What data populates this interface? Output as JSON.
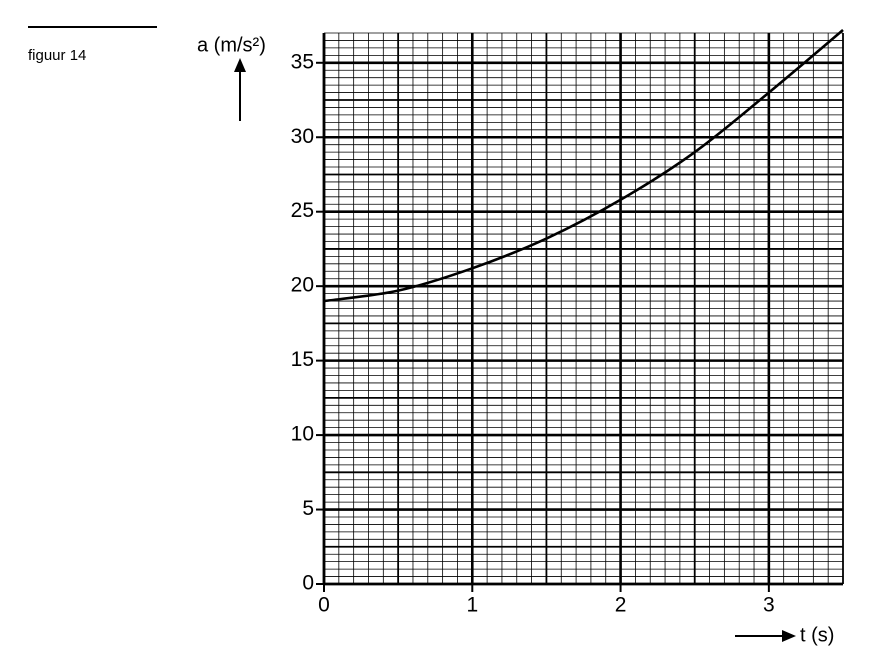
{
  "chart_data": {
    "type": "line",
    "title": "figuur 14",
    "y_label": "a (m/s²)",
    "x_label": "t (s)",
    "x": [
      0,
      0.5,
      1,
      1.5,
      2,
      2.5,
      3,
      3.5
    ],
    "series": [
      {
        "name": "a",
        "color": "#000000",
        "values": [
          19,
          19.7,
          21.2,
          23.2,
          25.8,
          29,
          33,
          37.2
        ]
      }
    ],
    "xlim": [
      0,
      3.5
    ],
    "ylim": [
      0,
      37
    ],
    "xticks": [
      0,
      1,
      2,
      3
    ],
    "yticks": [
      0,
      5,
      10,
      15,
      20,
      25,
      30,
      35
    ],
    "grid": true
  }
}
